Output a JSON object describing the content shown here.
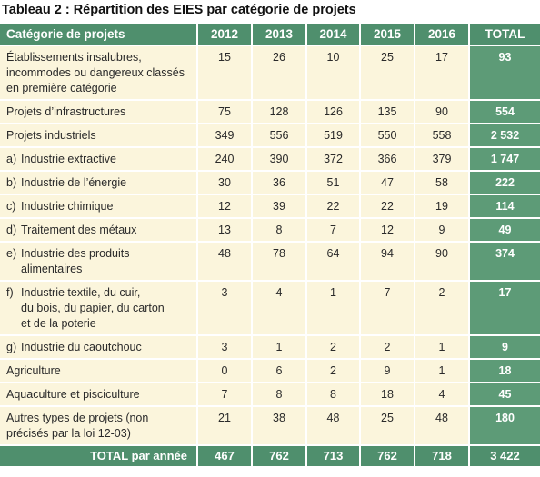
{
  "title": "Tableau 2 : Répartition des EIES par catégorie de projets",
  "header": {
    "category": "Catégorie de projets",
    "years": [
      "2012",
      "2013",
      "2014",
      "2015",
      "2016"
    ],
    "total": "TOTAL"
  },
  "rows": [
    {
      "label": "Établissements insalubres, incommodes ou dangereux classés en première catégorie",
      "values": [
        "15",
        "26",
        "10",
        "25",
        "17"
      ],
      "total": "93"
    },
    {
      "label": "Projets d’infrastructures",
      "values": [
        "75",
        "128",
        "126",
        "135",
        "90"
      ],
      "total": "554"
    },
    {
      "label": "Projets industriels",
      "values": [
        "349",
        "556",
        "519",
        "550",
        "558"
      ],
      "total": "2 532"
    },
    {
      "letter": "a)",
      "label": "Industrie extractive",
      "values": [
        "240",
        "390",
        "372",
        "366",
        "379"
      ],
      "total": "1 747"
    },
    {
      "letter": "b)",
      "label": "Industrie de l’énergie",
      "values": [
        "30",
        "36",
        "51",
        "47",
        "58"
      ],
      "total": "222"
    },
    {
      "letter": "c)",
      "label": "Industrie chimique",
      "values": [
        "12",
        "39",
        "22",
        "22",
        "19"
      ],
      "total": "114"
    },
    {
      "letter": "d)",
      "label": "Traitement des métaux",
      "values": [
        "13",
        "8",
        "7",
        "12",
        "9"
      ],
      "total": "49"
    },
    {
      "letter": "e)",
      "label": "Industrie des produits",
      "label2": "alimentaires",
      "values": [
        "48",
        "78",
        "64",
        "94",
        "90"
      ],
      "total": "374"
    },
    {
      "letter": "f)",
      "label": "Industrie textile, du cuir,",
      "label2": "du bois, du papier, du carton",
      "label3": "et de la poterie",
      "values": [
        "3",
        "4",
        "1",
        "7",
        "2"
      ],
      "total": "17"
    },
    {
      "letter": "g)",
      "label": "Industrie du caoutchouc",
      "values": [
        "3",
        "1",
        "2",
        "2",
        "1"
      ],
      "total": "9"
    },
    {
      "label": "Agriculture",
      "values": [
        "0",
        "6",
        "2",
        "9",
        "1"
      ],
      "total": "18"
    },
    {
      "label": "Aquaculture et pisciculture",
      "values": [
        "7",
        "8",
        "8",
        "18",
        "4"
      ],
      "total": "45"
    },
    {
      "label": "Autres types de projets (non précisés par la loi 12-03)",
      "values": [
        "21",
        "38",
        "48",
        "25",
        "48"
      ],
      "total": "180"
    }
  ],
  "footer": {
    "label": "TOTAL par année",
    "values": [
      "467",
      "762",
      "713",
      "762",
      "718"
    ],
    "total": "3 422"
  }
}
